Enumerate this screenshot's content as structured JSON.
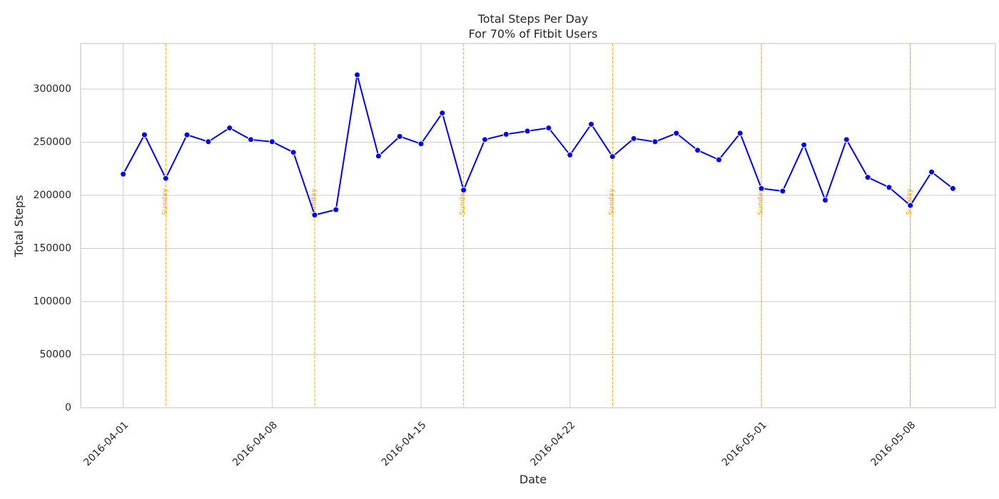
{
  "chart_data": {
    "type": "line",
    "title": "Total Steps Per Day",
    "subtitle": "For 70% of Fitbit Users",
    "xlabel": "Date",
    "ylabel": "Total Steps",
    "x_start": "2016-04-01",
    "x_end": "2016-05-10",
    "xlim": [
      "2016-03-30",
      "2016-05-12"
    ],
    "ylim": [
      0,
      343000
    ],
    "y_ticks": [
      0,
      50000,
      100000,
      150000,
      200000,
      250000,
      300000
    ],
    "x_ticks": [
      "2016-04-01",
      "2016-04-08",
      "2016-04-15",
      "2016-04-22",
      "2016-05-01",
      "2016-05-08"
    ],
    "grid": true,
    "line_color": "#0000ff",
    "marker_color": "#0000ff",
    "sunday_color": "#ffa500",
    "sunday_label": "Sunday",
    "sundays": [
      "2016-04-03",
      "2016-04-10",
      "2016-04-17",
      "2016-04-24",
      "2016-05-01",
      "2016-05-08"
    ],
    "series": [
      {
        "x": [
          "2016-04-01",
          "2016-04-02",
          "2016-04-03",
          "2016-04-04",
          "2016-04-05",
          "2016-04-06",
          "2016-04-07",
          "2016-04-08",
          "2016-04-09",
          "2016-04-10",
          "2016-04-11",
          "2016-04-12",
          "2016-04-13",
          "2016-04-14",
          "2016-04-15",
          "2016-04-16",
          "2016-04-17",
          "2016-04-18",
          "2016-04-19",
          "2016-04-20",
          "2016-04-21",
          "2016-04-22",
          "2016-04-23",
          "2016-04-24",
          "2016-04-25",
          "2016-04-26",
          "2016-04-27",
          "2016-04-28",
          "2016-04-29",
          "2016-04-30",
          "2016-05-01",
          "2016-05-02",
          "2016-05-03",
          "2016-05-04",
          "2016-05-05",
          "2016-05-06",
          "2016-05-07",
          "2016-05-08",
          "2016-05-09",
          "2016-05-10"
        ],
        "values": [
          220000,
          257000,
          216000,
          257000,
          250500,
          263500,
          252500,
          250500,
          240500,
          181500,
          186500,
          313500,
          237000,
          255500,
          248500,
          277500,
          205000,
          252500,
          257500,
          260500,
          263500,
          238000,
          267000,
          236500,
          253500,
          250500,
          258500,
          242500,
          233500,
          258500,
          206500,
          204000,
          247500,
          195500,
          252500,
          217000,
          207500,
          190500,
          222000,
          206500
        ]
      }
    ]
  }
}
